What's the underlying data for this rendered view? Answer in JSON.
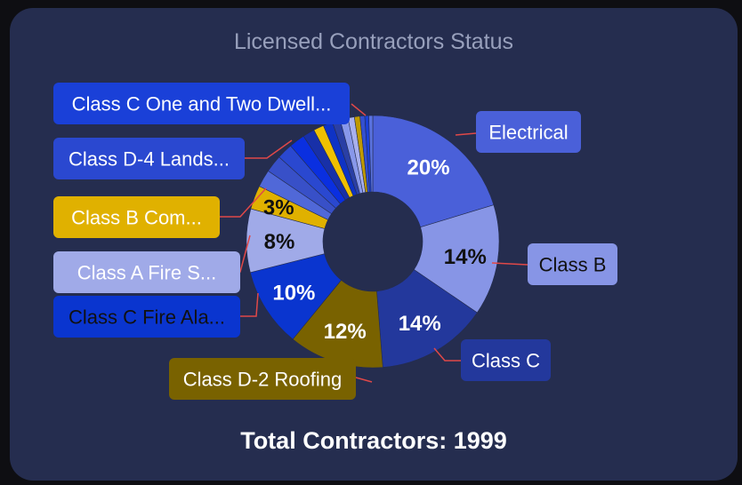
{
  "chart_data": {
    "type": "pie",
    "style": "donut",
    "title": "Licensed Contractors Status",
    "slices": [
      {
        "label": "Electrical",
        "value": 20,
        "display": "20%",
        "color": "#4a60d9",
        "text_color": "#ffffff",
        "label_color": "#ffffff"
      },
      {
        "label": "Class B",
        "value": 14,
        "display": "14%",
        "color": "#8795e6",
        "text_color": "#111111",
        "label_color": "#111111"
      },
      {
        "label": "Class C",
        "value": 14,
        "display": "14%",
        "color": "#23389c",
        "text_color": "#ffffff",
        "label_color": "#ffffff"
      },
      {
        "label": "Class D-2 Roofing",
        "value": 12,
        "display": "12%",
        "color": "#796200",
        "text_color": "#ffffff",
        "label_color": "#ffffff"
      },
      {
        "label": "Class C Fire Ala...",
        "value": 10,
        "display": "10%",
        "color": "#0a35cf",
        "text_color": "#ffffff",
        "label_color": "#111111"
      },
      {
        "label": "Class A Fire S...",
        "value": 8,
        "display": "8%",
        "color": "#a0aae8",
        "text_color": "#111111",
        "label_color": "#ffffff"
      },
      {
        "label": "Class B Com...",
        "value": 3,
        "display": "3%",
        "color": "#e0b100",
        "text_color": "#111111",
        "label_color": "#ffffff"
      },
      {
        "label": "",
        "value": 2.2,
        "display": "",
        "color": "#5068d8"
      },
      {
        "label": "",
        "value": 2.2,
        "display": "",
        "color": "#3850c8"
      },
      {
        "label": "Class D-4 Lands...",
        "value": 2.0,
        "display": "",
        "color": "#2a48d0",
        "text_color": "#ffffff",
        "label_color": "#ffffff"
      },
      {
        "label": "",
        "value": 2.0,
        "display": "",
        "color": "#0a2fe0"
      },
      {
        "label": "",
        "value": 1.5,
        "display": "",
        "color": "#1830a8"
      },
      {
        "label": "",
        "value": 1.3,
        "display": "",
        "color": "#f0c000"
      },
      {
        "label": "",
        "value": 1.2,
        "display": "",
        "color": "#0f33c5"
      },
      {
        "label": "",
        "value": 1.0,
        "display": "",
        "color": "#2a3fa5"
      },
      {
        "label": "",
        "value": 1.0,
        "display": "",
        "color": "#8898ea"
      },
      {
        "label": "",
        "value": 0.8,
        "display": "",
        "color": "#a8b0ee"
      },
      {
        "label": "",
        "value": 0.7,
        "display": "",
        "color": "#c09a00"
      },
      {
        "label": "",
        "value": 0.6,
        "display": "",
        "color": "#3450d0"
      },
      {
        "label": "Class C One and Two Dwell...",
        "value": 0.5,
        "display": "",
        "color": "#1a40d8",
        "text_color": "#ffffff",
        "label_color": "#ffffff"
      },
      {
        "label": "",
        "value": 0.5,
        "display": "",
        "color": "#5a72e0"
      }
    ]
  },
  "footer": {
    "total_label": "Total Contractors: 1999"
  },
  "colors": {
    "card": "#252d4f",
    "title": "#98a0bc",
    "leader": "#e04848"
  }
}
